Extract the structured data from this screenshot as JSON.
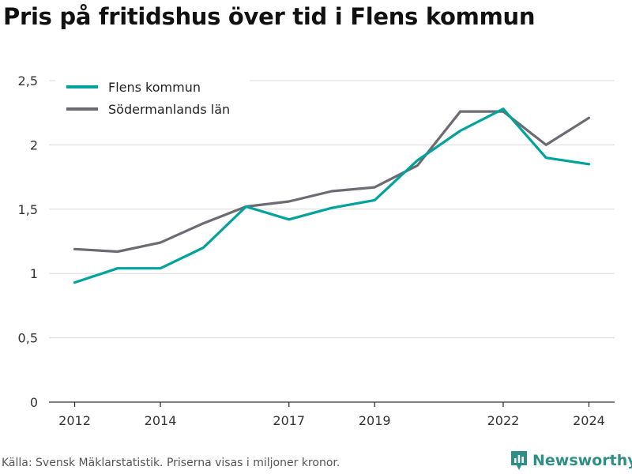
{
  "title": "Pris på fritidshus över tid i Flens kommun",
  "footer": "Källa: Svensk Mäklarstatistik. Priserna visas i miljoner kronor.",
  "brand": {
    "name": "Newsworthy",
    "icon": "bar-chart-icon",
    "color": "#2f8f86"
  },
  "chart_data": {
    "type": "line",
    "x": [
      2012,
      2013,
      2014,
      2015,
      2016,
      2017,
      2018,
      2019,
      2020,
      2021,
      2022,
      2023,
      2024
    ],
    "xticks": [
      2012,
      2014,
      2017,
      2019,
      2022,
      2024
    ],
    "yticks": [
      0,
      0.5,
      1,
      1.5,
      2,
      2.5
    ],
    "ytick_labels": [
      "0",
      "0,5",
      "1",
      "1,5",
      "2",
      "2,5"
    ],
    "xlim": [
      2011.4,
      2024.6
    ],
    "ylim": [
      0,
      2.5
    ],
    "grid": true,
    "legend_position": "top-left",
    "series": [
      {
        "name": "Flens kommun",
        "color": "#00a39b",
        "values": [
          0.93,
          1.04,
          1.04,
          1.2,
          1.52,
          1.42,
          1.51,
          1.57,
          1.88,
          2.11,
          2.28,
          1.9,
          1.85
        ]
      },
      {
        "name": "Södermanlands län",
        "color": "#6c6b73",
        "values": [
          1.19,
          1.17,
          1.24,
          1.39,
          1.52,
          1.56,
          1.64,
          1.67,
          1.84,
          2.26,
          2.26,
          2.0,
          2.21
        ]
      }
    ]
  }
}
